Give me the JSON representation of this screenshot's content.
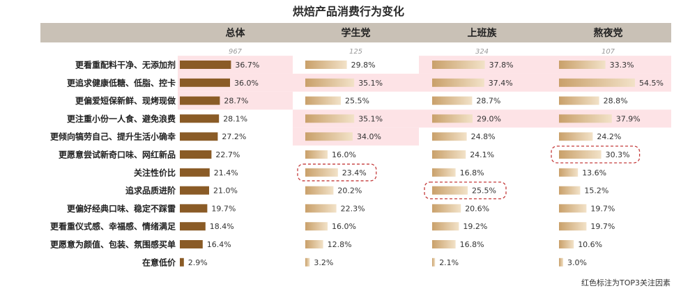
{
  "chart_data": {
    "type": "bar",
    "title": "烘焙产品消费行为变化",
    "note": "红色标注为TOP3关注因素",
    "xmax": 60,
    "categories": [
      "更看重配料干净、无添加剂",
      "更追求健康低糖、低脂、控卡",
      "更偏爱短保新鲜、现烤现做",
      "更注重小份一人食、避免浪费",
      "更倾向犒劳自己、提升生活小确幸",
      "更愿意尝试新奇口味、网红新品",
      "关注性价比",
      "追求品质进阶",
      "更偏好经典口味、稳定不踩雷",
      "更看重仪式感、幸福感、情绪满足",
      "更愿意为颜值、包装、氛围感买单",
      "在意低价"
    ],
    "groups": [
      {
        "name": "总体",
        "n": "967",
        "values": [
          36.7,
          36.0,
          28.7,
          28.1,
          27.2,
          22.7,
          21.4,
          21.0,
          19.7,
          18.4,
          16.4,
          2.9
        ],
        "labels": [
          "36.7%",
          "36.0%",
          "28.7%",
          "28.1%",
          "27.2%",
          "22.7%",
          "21.4%",
          "21.0%",
          "19.7%",
          "18.4%",
          "16.4%",
          "2.9%"
        ],
        "highlight": [
          0,
          1,
          2
        ],
        "boxed": []
      },
      {
        "name": "学生党",
        "n": "125",
        "values": [
          29.8,
          35.1,
          25.5,
          35.1,
          34.0,
          16.0,
          23.4,
          20.2,
          22.3,
          16.0,
          12.8,
          3.2
        ],
        "labels": [
          "29.8%",
          "35.1%",
          "25.5%",
          "35.1%",
          "34.0%",
          "16.0%",
          "23.4%",
          "20.2%",
          "22.3%",
          "16.0%",
          "12.8%",
          "3.2%"
        ],
        "highlight": [
          1,
          3,
          4
        ],
        "boxed": [
          6
        ]
      },
      {
        "name": "上班族",
        "n": "324",
        "values": [
          37.8,
          37.4,
          28.7,
          29.0,
          24.8,
          24.1,
          16.8,
          25.5,
          20.6,
          19.2,
          16.8,
          2.1
        ],
        "labels": [
          "37.8%",
          "37.4%",
          "28.7%",
          "29.0%",
          "24.8%",
          "24.1%",
          "16.8%",
          "25.5%",
          "20.6%",
          "19.2%",
          "16.8%",
          "2.1%"
        ],
        "highlight": [
          0,
          1,
          3
        ],
        "boxed": [
          7
        ]
      },
      {
        "name": "熬夜党",
        "n": "107",
        "values": [
          33.3,
          54.5,
          28.8,
          37.9,
          24.2,
          30.3,
          13.6,
          15.2,
          19.7,
          19.7,
          10.6,
          3.0
        ],
        "labels": [
          "33.3%",
          "54.5%",
          "28.8%",
          "37.9%",
          "24.2%",
          "30.3%",
          "13.6%",
          "15.2%",
          "19.7%",
          "19.7%",
          "10.6%",
          "3.0%"
        ],
        "highlight": [
          0,
          1,
          3
        ],
        "boxed": [
          5
        ]
      }
    ],
    "colors": {
      "header_bg": "#c9c1b6",
      "highlight_bg": "#fde3e6",
      "overall_bar": "#8a5b26",
      "group_bar_dark": "#c9a06a",
      "group_bar_light": "#f2e2c8",
      "box_stroke": "#c43a3a",
      "n_text": "#999999"
    }
  }
}
